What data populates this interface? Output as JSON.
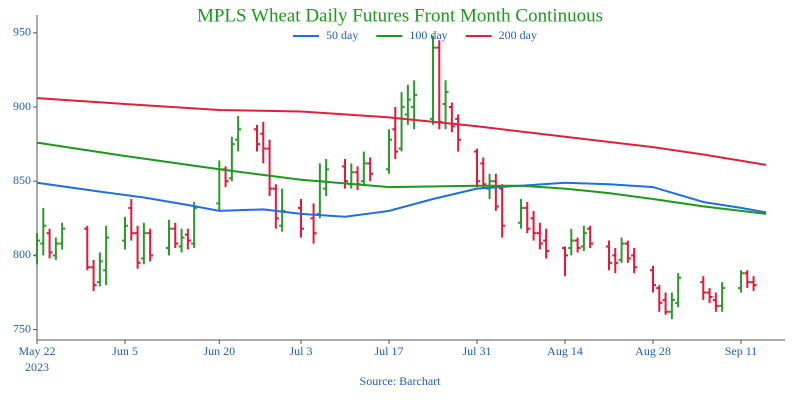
{
  "chart_data": {
    "type": "ohlc",
    "title": "MPLS Wheat Daily Futures Front Month Continuous",
    "source": "Source: Barchart",
    "x": [
      "2023-05-22",
      "2023-05-23",
      "2023-05-24",
      "2023-05-25",
      "2023-05-26",
      "2023-05-30",
      "2023-05-31",
      "2023-06-01",
      "2023-06-02",
      "2023-06-05",
      "2023-06-06",
      "2023-06-07",
      "2023-06-08",
      "2023-06-09",
      "2023-06-12",
      "2023-06-13",
      "2023-06-14",
      "2023-06-15",
      "2023-06-16",
      "2023-06-20",
      "2023-06-21",
      "2023-06-22",
      "2023-06-23",
      "2023-06-26",
      "2023-06-27",
      "2023-06-28",
      "2023-06-29",
      "2023-06-30",
      "2023-07-03",
      "2023-07-05",
      "2023-07-06",
      "2023-07-07",
      "2023-07-10",
      "2023-07-11",
      "2023-07-12",
      "2023-07-13",
      "2023-07-14",
      "2023-07-17",
      "2023-07-18",
      "2023-07-19",
      "2023-07-20",
      "2023-07-21",
      "2023-07-24",
      "2023-07-25",
      "2023-07-26",
      "2023-07-27",
      "2023-07-28",
      "2023-07-31",
      "2023-08-01",
      "2023-08-02",
      "2023-08-03",
      "2023-08-04",
      "2023-08-07",
      "2023-08-08",
      "2023-08-09",
      "2023-08-10",
      "2023-08-11",
      "2023-08-14",
      "2023-08-15",
      "2023-08-16",
      "2023-08-17",
      "2023-08-18",
      "2023-08-21",
      "2023-08-22",
      "2023-08-23",
      "2023-08-24",
      "2023-08-25",
      "2023-08-28",
      "2023-08-29",
      "2023-08-30",
      "2023-08-31",
      "2023-09-01",
      "2023-09-05",
      "2023-09-06",
      "2023-09-07",
      "2023-09-08",
      "2023-09-11",
      "2023-09-12",
      "2023-09-13"
    ],
    "open": [
      800,
      808,
      815,
      800,
      808,
      818,
      792,
      782,
      790,
      810,
      832,
      815,
      798,
      815,
      805,
      818,
      806,
      814,
      808,
      835,
      858,
      852,
      878,
      885,
      882,
      872,
      845,
      820,
      832,
      825,
      828,
      845,
      860,
      848,
      856,
      850,
      862,
      858,
      885,
      872,
      895,
      900,
      892,
      940,
      902,
      900,
      892,
      870,
      862,
      845,
      850,
      845,
      822,
      832,
      825,
      815,
      810,
      805,
      805,
      810,
      806,
      818,
      806,
      800,
      797,
      808,
      800,
      790,
      778,
      770,
      762,
      768,
      782,
      775,
      770,
      766,
      778,
      788,
      782
    ],
    "high": [
      815,
      832,
      818,
      812,
      822,
      820,
      797,
      802,
      820,
      826,
      838,
      820,
      822,
      818,
      824,
      822,
      818,
      818,
      836,
      864,
      860,
      880,
      894,
      888,
      890,
      878,
      848,
      845,
      838,
      835,
      862,
      865,
      865,
      862,
      860,
      870,
      866,
      885,
      900,
      910,
      915,
      918,
      948,
      945,
      918,
      903,
      895,
      872,
      866,
      855,
      855,
      848,
      838,
      836,
      830,
      822,
      818,
      806,
      818,
      812,
      820,
      820,
      810,
      805,
      812,
      810,
      805,
      793,
      780,
      775,
      775,
      788,
      786,
      778,
      775,
      782,
      790,
      790,
      786
    ],
    "low": [
      794,
      800,
      798,
      797,
      804,
      790,
      776,
      779,
      780,
      804,
      810,
      791,
      794,
      796,
      800,
      805,
      802,
      804,
      805,
      830,
      846,
      850,
      870,
      870,
      862,
      840,
      818,
      816,
      812,
      808,
      825,
      840,
      845,
      845,
      844,
      848,
      850,
      855,
      865,
      870,
      888,
      885,
      888,
      885,
      885,
      883,
      870,
      846,
      845,
      838,
      830,
      812,
      818,
      815,
      810,
      804,
      798,
      786,
      800,
      802,
      803,
      805,
      790,
      788,
      795,
      795,
      788,
      775,
      762,
      760,
      757,
      765,
      770,
      768,
      762,
      762,
      775,
      778,
      776
    ],
    "close": [
      810,
      820,
      802,
      808,
      818,
      792,
      780,
      796,
      812,
      820,
      815,
      795,
      815,
      800,
      818,
      808,
      812,
      810,
      832,
      858,
      850,
      875,
      885,
      875,
      872,
      845,
      825,
      830,
      818,
      815,
      850,
      858,
      850,
      856,
      848,
      862,
      855,
      878,
      870,
      900,
      905,
      908,
      940,
      890,
      910,
      887,
      878,
      850,
      848,
      850,
      833,
      820,
      832,
      818,
      815,
      808,
      803,
      800,
      810,
      805,
      815,
      808,
      795,
      795,
      808,
      798,
      792,
      780,
      768,
      762,
      770,
      785,
      775,
      772,
      766,
      778,
      788,
      782,
      780
    ],
    "up_color": "#2a9a2a",
    "down_color": "#e8173a",
    "series": [
      {
        "name": "50 day",
        "color": "#1f6fe0",
        "x": [
          "2023-05-22",
          "2023-06-01",
          "2023-06-08",
          "2023-06-15",
          "2023-06-20",
          "2023-06-27",
          "2023-07-03",
          "2023-07-10",
          "2023-07-17",
          "2023-07-24",
          "2023-07-31",
          "2023-08-07",
          "2023-08-14",
          "2023-08-21",
          "2023-08-28",
          "2023-09-05",
          "2023-09-11",
          "2023-09-15"
        ],
        "values": [
          849,
          843,
          839,
          834,
          830,
          831,
          828,
          826,
          830,
          838,
          845,
          847,
          849,
          848,
          846,
          836,
          832,
          829
        ]
      },
      {
        "name": "100 day",
        "color": "#1a9a1a",
        "x": [
          "2023-05-22",
          "2023-06-05",
          "2023-06-20",
          "2023-07-03",
          "2023-07-17",
          "2023-07-31",
          "2023-08-07",
          "2023-08-14",
          "2023-08-21",
          "2023-08-28",
          "2023-09-05",
          "2023-09-15"
        ],
        "values": [
          876,
          867,
          858,
          851,
          846,
          847,
          847,
          845,
          842,
          838,
          833,
          828
        ]
      },
      {
        "name": "200 day",
        "color": "#e0203a",
        "x": [
          "2023-05-22",
          "2023-06-05",
          "2023-06-20",
          "2023-07-03",
          "2023-07-17",
          "2023-07-31",
          "2023-08-14",
          "2023-08-28",
          "2023-09-05",
          "2023-09-15"
        ],
        "values": [
          906,
          902,
          898,
          897,
          893,
          887,
          880,
          873,
          868,
          861
        ]
      }
    ],
    "xlim": [
      "2023-05-22",
      "2023-09-18"
    ],
    "ylim": [
      743,
      962
    ],
    "yticks": [
      750,
      800,
      850,
      900,
      950
    ],
    "xticks": [
      {
        "value": "2023-05-22",
        "label": "May 22"
      },
      {
        "value": "2023-06-05",
        "label": "Jun 5"
      },
      {
        "value": "2023-06-20",
        "label": "Jun 20"
      },
      {
        "value": "2023-07-03",
        "label": "Jul 3"
      },
      {
        "value": "2023-07-17",
        "label": "Jul 17"
      },
      {
        "value": "2023-07-31",
        "label": "Jul 31"
      },
      {
        "value": "2023-08-14",
        "label": "Aug 14"
      },
      {
        "value": "2023-08-28",
        "label": "Aug 28"
      },
      {
        "value": "2023-09-11",
        "label": "Sep 11"
      }
    ],
    "year_label": "2023"
  }
}
